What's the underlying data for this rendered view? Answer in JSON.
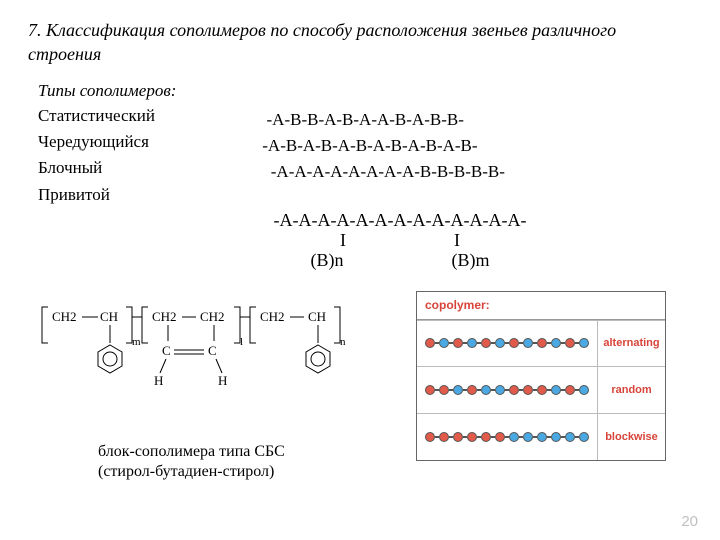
{
  "title": "7. Классификация сополимеров по способу расположения звеньев различного строения",
  "types_header": "Типы сополимеров:",
  "types": [
    "Статистический",
    "Чередующийся",
    "Блочный",
    "Привитой"
  ],
  "sequences": {
    "stat": "  -A-B-B-A-B-A-A-B-A-B-B-",
    "alt": " -A-B-A-B-A-B-A-B-A-B-A-B-",
    "block": "   -A-A-A-A-A-A-A-A-B-B-B-B-B-"
  },
  "graft": {
    "main": "-A-A-A-A-A-A-A-A-A-A-A-A-A-",
    "bar": "I",
    "b1": "(B)n",
    "b2": "(B)m"
  },
  "caption_l1": "блок-сополимера  типа СБС",
  "caption_l2": "(стирол-бутадиен-стирол)",
  "diagram": {
    "header": "copolymer:",
    "labels": [
      "alternating",
      "random",
      "blockwise"
    ],
    "patterns": {
      "alternating": [
        "r",
        "b",
        "r",
        "b",
        "r",
        "b",
        "r",
        "b",
        "r",
        "b",
        "r",
        "b"
      ],
      "random": [
        "r",
        "r",
        "b",
        "r",
        "b",
        "b",
        "r",
        "r",
        "r",
        "b",
        "r",
        "b"
      ],
      "blockwise": [
        "r",
        "r",
        "r",
        "r",
        "r",
        "r",
        "b",
        "b",
        "b",
        "b",
        "b",
        "b"
      ]
    },
    "colors": {
      "r": "#e25a4a",
      "b": "#4aa8e2"
    }
  },
  "pagenum": "20"
}
